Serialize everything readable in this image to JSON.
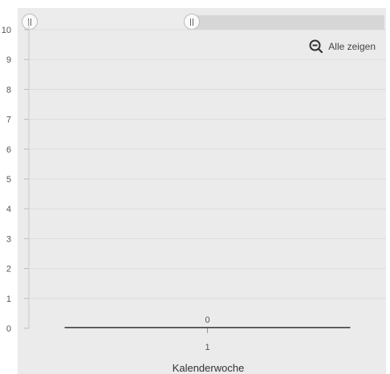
{
  "zoom": {
    "range_start_fraction": 0.0,
    "range_end_fraction": 0.47
  },
  "reset_zoom": {
    "label": "Alle zeigen",
    "icon": "zoom-out-icon"
  },
  "chart_data": {
    "type": "bar",
    "categories": [
      "1"
    ],
    "series": [
      {
        "values": [
          0
        ]
      }
    ],
    "data_labels": [
      "0"
    ],
    "xlabel": "Kalenderwoche",
    "ylabel": "",
    "ylim": [
      0,
      10
    ],
    "y_ticks": [
      0,
      1,
      2,
      3,
      4,
      5,
      6,
      7,
      8,
      9,
      10
    ],
    "grid": true,
    "colors": {
      "bar": "#333333",
      "grid": "#dcdcdc",
      "background": "#ebebeb"
    }
  }
}
